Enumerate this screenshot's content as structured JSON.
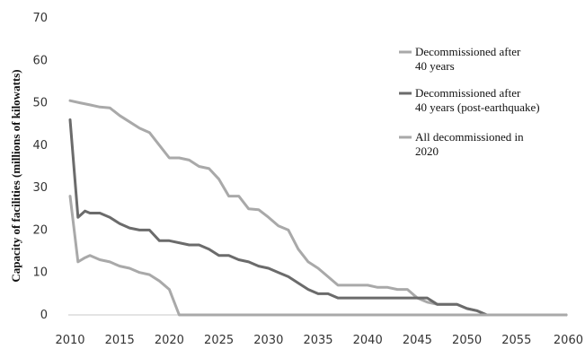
{
  "chart_data": {
    "type": "line",
    "title": "",
    "xlabel": "",
    "ylabel": "Capacity of facilities (millions of kilowatts)",
    "xlim": [
      2010,
      2060
    ],
    "ylim": [
      0,
      70
    ],
    "x_ticks": [
      2010,
      2015,
      2020,
      2025,
      2030,
      2035,
      2040,
      2045,
      2050,
      2055,
      2060
    ],
    "x_tick_labels": [
      "2010",
      "2015",
      "2020",
      "2025",
      "2030",
      "2035",
      "2040",
      "2045",
      "2050",
      "2055",
      "2060"
    ],
    "y_ticks": [
      0,
      10,
      20,
      30,
      40,
      50,
      60,
      70
    ],
    "y_tick_labels": [
      "0",
      "10",
      "20",
      "30",
      "40",
      "50",
      "60",
      "70"
    ],
    "grid": false,
    "legend_position": "right",
    "series": [
      {
        "name_lines": [
          "Decommissioned after",
          "40 years"
        ],
        "color": "#a9a9a9",
        "x": [
          2010,
          2011,
          2012,
          2013,
          2014,
          2015,
          2016,
          2017,
          2018,
          2019,
          2020,
          2021,
          2022,
          2023,
          2024,
          2025,
          2026,
          2027,
          2028,
          2029,
          2030,
          2031,
          2032,
          2033,
          2034,
          2035,
          2036,
          2037,
          2038,
          2039,
          2040,
          2041,
          2042,
          2043,
          2044,
          2045,
          2046,
          2047,
          2048,
          2049,
          2050,
          2051,
          2052,
          2053,
          2055,
          2060
        ],
        "y": [
          50.5,
          50,
          49.5,
          49,
          48.8,
          47,
          45.5,
          44,
          43,
          40,
          37,
          37,
          36.5,
          35,
          34.5,
          32,
          28,
          28,
          25,
          24.8,
          23,
          21,
          20,
          15.5,
          12.5,
          11,
          9,
          7,
          7,
          7,
          7,
          6.5,
          6.5,
          6,
          6,
          4,
          3,
          2.5,
          2.5,
          2.5,
          1.5,
          1,
          0,
          0,
          0,
          0
        ]
      },
      {
        "name_lines": [
          "Decommissioned after",
          "40 years (post-earthquake)"
        ],
        "color": "#6b6b6b",
        "x": [
          2010,
          2010.8,
          2011.5,
          2012,
          2013,
          2014,
          2015,
          2016,
          2017,
          2018,
          2019,
          2020,
          2021,
          2022,
          2023,
          2024,
          2025,
          2026,
          2027,
          2028,
          2029,
          2030,
          2031,
          2032,
          2033,
          2034,
          2035,
          2036,
          2037,
          2038,
          2039,
          2040,
          2041,
          2042,
          2043,
          2044,
          2045,
          2046,
          2047,
          2048,
          2049,
          2050,
          2051,
          2052,
          2055,
          2060
        ],
        "y": [
          46,
          23,
          24.5,
          24,
          24,
          23,
          21.5,
          20.5,
          20,
          20,
          17.5,
          17.5,
          17,
          16.5,
          16.5,
          15.5,
          14,
          14,
          13,
          12.5,
          11.5,
          11,
          10,
          9,
          7.5,
          6,
          5,
          5,
          4,
          4,
          4,
          4,
          4,
          4,
          4,
          4,
          4,
          4,
          2.5,
          2.5,
          2.5,
          1.5,
          1,
          0,
          0,
          0
        ]
      },
      {
        "name_lines": [
          "All decommissioned in",
          "2020"
        ],
        "color": "#a9a9a9",
        "x": [
          2010,
          2010.8,
          2011.5,
          2012,
          2013,
          2014,
          2015,
          2016,
          2017,
          2018,
          2019,
          2020,
          2021,
          2022,
          2060
        ],
        "y": [
          28,
          12.5,
          13.5,
          14,
          13,
          12.5,
          11.5,
          11,
          10,
          9.5,
          8,
          6,
          0,
          0,
          0
        ]
      }
    ]
  }
}
